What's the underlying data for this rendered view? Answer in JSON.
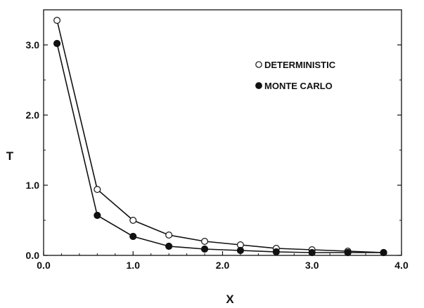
{
  "chart_data": {
    "type": "line",
    "title": "",
    "xlabel": "X",
    "ylabel": "T",
    "xlim": [
      0.0,
      4.0
    ],
    "ylim": [
      0.0,
      3.5
    ],
    "xticks": [
      "0.0",
      "1.0",
      "2.0",
      "3.0",
      "4.0"
    ],
    "yticks": [
      "0.0",
      "1.0",
      "2.0",
      "3.0"
    ],
    "grid": false,
    "legend_position": "top-right",
    "series": [
      {
        "name": "DETERMINISTIC",
        "marker": "open-circle",
        "x": [
          0.15,
          0.6,
          1.0,
          1.4,
          1.8,
          2.2,
          2.6,
          3.0,
          3.4,
          3.8
        ],
        "y": [
          3.35,
          0.94,
          0.5,
          0.29,
          0.2,
          0.15,
          0.1,
          0.08,
          0.06,
          0.04
        ]
      },
      {
        "name": "MONTE CARLO",
        "marker": "filled-circle",
        "x": [
          0.15,
          0.6,
          1.0,
          1.4,
          1.8,
          2.2,
          2.6,
          3.0,
          3.4,
          3.8
        ],
        "y": [
          3.02,
          0.57,
          0.27,
          0.13,
          0.09,
          0.07,
          0.05,
          0.04,
          0.04,
          0.04
        ]
      }
    ]
  }
}
